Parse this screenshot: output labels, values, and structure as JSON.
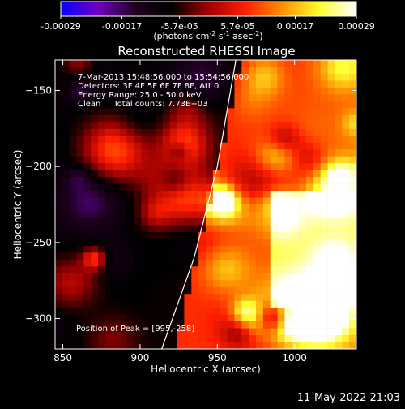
{
  "colorbar": {
    "tick_labels": [
      "-0.00029",
      "-0.00017",
      "-5.7e-05",
      "5.7e-05",
      "0.00017",
      "0.00029"
    ],
    "tick_values": [
      -0.00029,
      -0.00017,
      -5.7e-05,
      5.7e-05,
      0.00017,
      0.00029
    ],
    "range": [
      -0.00029,
      0.00029
    ],
    "units_main": "(photons cm",
    "units_exp1": "-2",
    "units_mid1": " s",
    "units_exp2": "-1",
    "units_mid2": " asec",
    "units_exp3": "-2",
    "units_end": ")",
    "colors": [
      "#0000ff",
      "#7000c0",
      "#200020",
      "#000000",
      "#a00000",
      "#ff2000",
      "#ff9000",
      "#ffff30",
      "#ffffff"
    ]
  },
  "chart_data": {
    "type": "heatmap",
    "title": "Reconstructed RHESSI Image",
    "xlabel": "Heliocentric X (arcsec)",
    "ylabel": "Heliocentric Y (arcsec)",
    "xlim": [
      845,
      1040
    ],
    "ylim": [
      -320,
      -130
    ],
    "xticks": [
      850,
      900,
      950,
      1000
    ],
    "yticks": [
      -150,
      -200,
      -250,
      -300
    ],
    "xtick_labels": [
      "850",
      "900",
      "950",
      "1000"
    ],
    "ytick_labels": [
      "-150",
      "-200",
      "-250",
      "-300"
    ],
    "limb_curve": [
      [
        914,
        -320
      ],
      [
        935,
        -260
      ],
      [
        950,
        -200
      ],
      [
        962,
        -130
      ]
    ],
    "peak": [
      995,
      -258
    ],
    "annotations": [
      "7-Mar-2013 15:48:56.000 to 15:54:56.000",
      "Detectors: 3F 4F 5F 6F 7F 8F, Att 0",
      "Energy Range: 25.0 - 50.0 keV",
      "Clean     Total counts: 7.73E+03"
    ],
    "peak_label": "Position of Peak = [995,-258]"
  },
  "footer": {
    "timestamp": "11-May-2022 21:03"
  }
}
